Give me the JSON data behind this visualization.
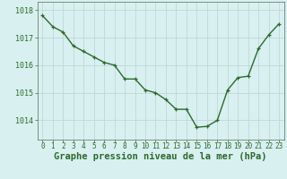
{
  "x": [
    0,
    1,
    2,
    3,
    4,
    5,
    6,
    7,
    8,
    9,
    10,
    11,
    12,
    13,
    14,
    15,
    16,
    17,
    18,
    19,
    20,
    21,
    22,
    23
  ],
  "y": [
    1017.8,
    1017.4,
    1017.2,
    1016.7,
    1016.5,
    1016.3,
    1016.1,
    1016.0,
    1015.5,
    1015.5,
    1015.1,
    1015.0,
    1014.75,
    1014.4,
    1014.4,
    1013.75,
    1013.78,
    1014.0,
    1015.1,
    1015.55,
    1015.6,
    1016.6,
    1017.1,
    1017.5
  ],
  "line_color": "#2d6a2d",
  "marker": "+",
  "marker_color": "#2d6a2d",
  "bg_color": "#d8f0f0",
  "grid_color": "#c0d8d8",
  "xlabel": "Graphe pression niveau de la mer (hPa)",
  "xlabel_fontsize": 7.5,
  "ylabel_ticks": [
    1014,
    1015,
    1016,
    1017,
    1018
  ],
  "xlim": [
    -0.5,
    23.5
  ],
  "ylim": [
    1013.3,
    1018.3
  ],
  "spine_color": "#708070",
  "label_color": "#2d6a2d",
  "tick_fontsize": 5.5,
  "ytick_fontsize": 6.0
}
